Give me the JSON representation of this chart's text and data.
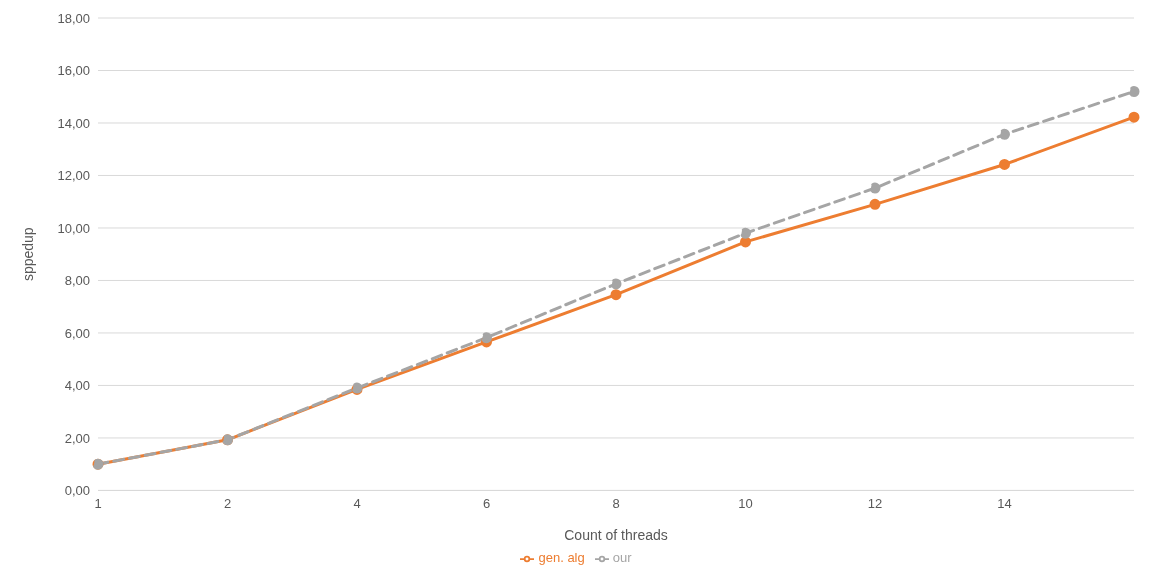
{
  "chart_data": {
    "type": "line",
    "xlabel": "Count of threads",
    "ylabel": "sppedup",
    "categories": [
      "1",
      "2",
      "4",
      "6",
      "8",
      "10",
      "12",
      "14",
      null
    ],
    "series": [
      {
        "name": "gen. alg",
        "color": "#ed7d31",
        "line_style": "solid",
        "values": [
          1.0,
          1.93,
          3.85,
          5.66,
          7.46,
          9.47,
          10.9,
          12.42,
          14.22
        ]
      },
      {
        "name": "our",
        "color": "#a5a5a5",
        "line_style": "dashed",
        "values": [
          1.0,
          1.93,
          3.9,
          5.82,
          7.87,
          9.8,
          11.52,
          13.57,
          15.2
        ]
      }
    ],
    "ylim": [
      0,
      18
    ],
    "yticks": [
      {
        "value": 0,
        "label": "0,00"
      },
      {
        "value": 2,
        "label": "2,00"
      },
      {
        "value": 4,
        "label": "4,00"
      },
      {
        "value": 6,
        "label": "6,00"
      },
      {
        "value": 8,
        "label": "8,00"
      },
      {
        "value": 10,
        "label": "10,00"
      },
      {
        "value": 12,
        "label": "12,00"
      },
      {
        "value": 14,
        "label": "14,00"
      },
      {
        "value": 16,
        "label": "16,00"
      },
      {
        "value": 18,
        "label": "18,00"
      }
    ],
    "grid": "y",
    "legend": "bottom",
    "marker": "circle"
  }
}
